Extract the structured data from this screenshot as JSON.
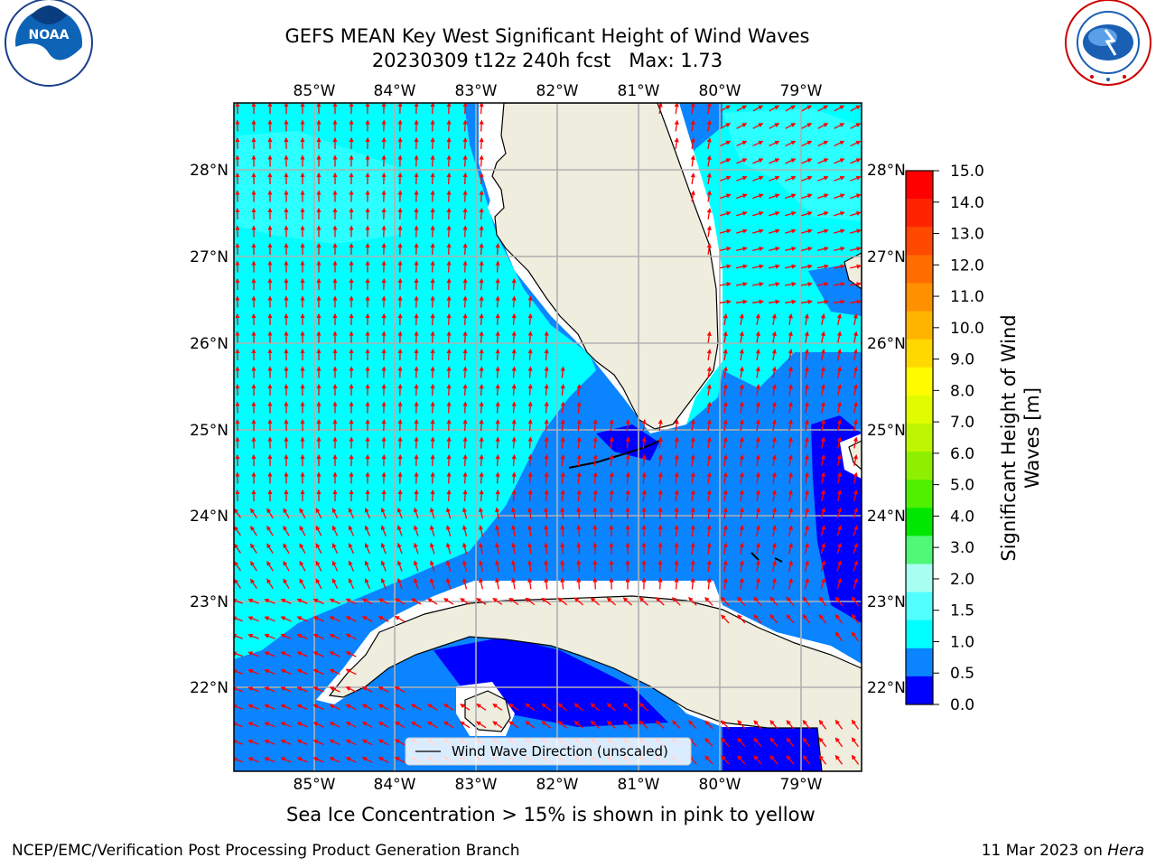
{
  "header": {
    "title_line1": "GEFS MEAN Key West Significant Height of Wind Waves",
    "title_line2": "20230309 t12z 240h fcst   Max: 1.73"
  },
  "logos": {
    "left": {
      "name": "noaa-logo",
      "text": "NOAA",
      "ring_text": "NATIONAL OCEANIC AND ATMOSPHERIC ADMINISTRATION · U.S. DEPARTMENT OF COMMERCE"
    },
    "right": {
      "name": "nws-logo",
      "ring_text": "NATIONAL WEATHER SERVICE"
    }
  },
  "map": {
    "lon_labels": [
      "85°W",
      "84°W",
      "83°W",
      "82°W",
      "81°W",
      "80°W",
      "79°W"
    ],
    "lat_labels": [
      "28°N",
      "27°N",
      "26°N",
      "25°N",
      "24°N",
      "23°N",
      "22°N"
    ],
    "legend_label": "Wind Wave Direction (unscaled)",
    "colors": {
      "land": "#eeedde",
      "wave_0_0_5": "#0000ff",
      "wave_0_5_1_0": "#0b84ff",
      "wave_1_0_1_5": "#00ffff",
      "wave_1_5_2_0": "#51ffff",
      "arrow": "#ff0000",
      "grid": "#b0b0b0"
    }
  },
  "colorbar": {
    "label": "Significant Height of Wind Waves [m]",
    "label_line1": "Significant Height of Wind",
    "label_line2": "Waves [m]",
    "ticks": [
      "15.0",
      "14.0",
      "13.0",
      "12.0",
      "11.0",
      "10.0",
      "9.0",
      "8.0",
      "7.0",
      "6.0",
      "5.0",
      "4.0",
      "3.0",
      "2.0",
      "1.5",
      "1.0",
      "0.5",
      "0.0"
    ],
    "colors_top_to_bottom": [
      "#ff0000",
      "#ff2400",
      "#ff4800",
      "#ff6c00",
      "#ff9000",
      "#ffb400",
      "#ffd800",
      "#fffc00",
      "#e2fc00",
      "#bef500",
      "#8ef000",
      "#50f000",
      "#00e800",
      "#50f878",
      "#a8fff0",
      "#51ffff",
      "#00ffff",
      "#0b84ff",
      "#0000ff"
    ]
  },
  "annotations": {
    "sea_ice_note": "Sea Ice Concentration > 15% is shown in pink to yellow"
  },
  "footer": {
    "left": "NCEP/EMC/Verification Post Processing Product Generation Branch",
    "right_date": "11 Mar 2023 on ",
    "right_host": "Hera"
  }
}
